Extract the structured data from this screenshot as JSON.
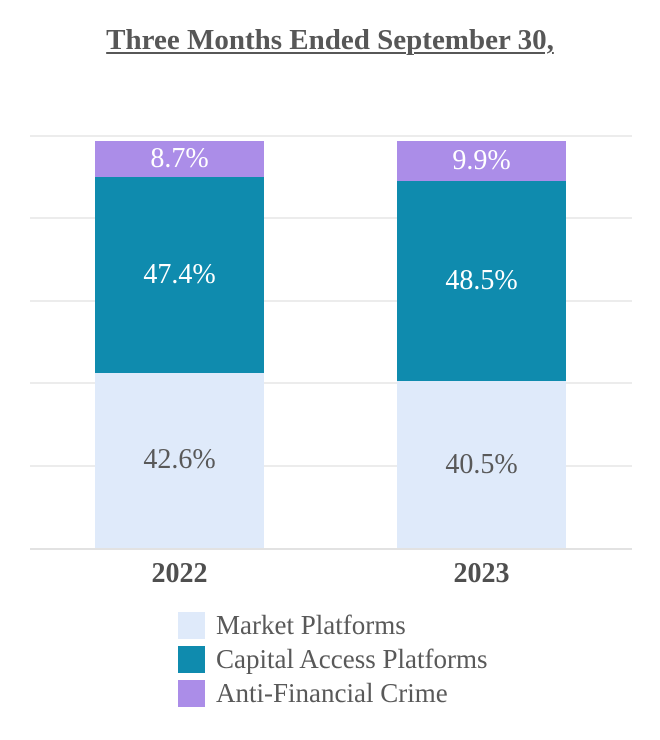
{
  "title": "Three Months Ended September 30,",
  "colors": {
    "market_platforms": "#dfeafa",
    "capital_access_platforms": "#0f8bae",
    "anti_financial_crime": "#ab8de8",
    "gridline": "#ececec",
    "baseline": "#e2e2e2",
    "title_text": "#575757",
    "axis_label_text": "#4f4f4f",
    "legend_text": "#595959",
    "label_on_light": "#595959",
    "label_on_dark": "#ffffff"
  },
  "chart_data": {
    "type": "bar",
    "stacked": true,
    "title": "Three Months Ended September 30,",
    "categories": [
      "2022",
      "2023"
    ],
    "series": [
      {
        "name": "Market Platforms",
        "color_key": "market_platforms",
        "label_color_key": "label_on_light",
        "values": [
          42.6,
          40.5
        ],
        "labels": [
          "42.6%",
          "40.5%"
        ]
      },
      {
        "name": "Capital Access Platforms",
        "color_key": "capital_access_platforms",
        "label_color_key": "label_on_dark",
        "values": [
          47.4,
          48.5
        ],
        "labels": [
          "47.4%",
          "48.5%"
        ]
      },
      {
        "name": "Anti-Financial Crime",
        "color_key": "anti_financial_crime",
        "label_color_key": "label_on_dark",
        "values": [
          8.7,
          9.9
        ],
        "labels": [
          "8.7%",
          "9.9%"
        ]
      }
    ],
    "xlabel": "",
    "ylabel": "",
    "ylim": [
      0,
      100
    ],
    "gridline_interval": 20,
    "y_axis_labels_visible": false,
    "grid": true,
    "legend_position": "bottom"
  }
}
